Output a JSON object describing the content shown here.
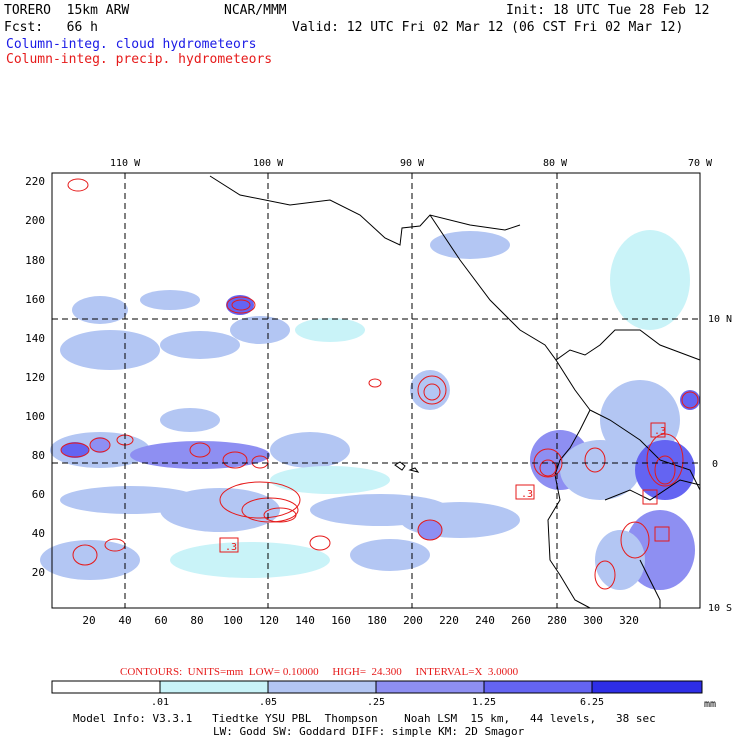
{
  "header": {
    "model": "TORERO  15km ARW",
    "org": "NCAR/MMM",
    "init": "Init: 18 UTC Tue 28 Feb 12",
    "fcst": "Fcst:   66 h",
    "valid": "Valid: 12 UTC Fri 02 Mar 12 (06 CST Fri 02 Mar 12)",
    "field_cloud": "Column-integ. cloud hydrometeors",
    "field_precip": "Column-integ. precip. hydrometeors"
  },
  "map": {
    "lon_labels": [
      "110 W",
      "100 W",
      "90 W",
      "80 W",
      "70 W"
    ],
    "lat_labels": [
      "10 N",
      "0",
      "10 S"
    ],
    "y_ticks": [
      "220",
      "200",
      "180",
      "160",
      "140",
      "120",
      "100",
      "80",
      "60",
      "40",
      "20"
    ],
    "x_ticks": [
      "20",
      "40",
      "60",
      "80",
      "100",
      "120",
      "140",
      "160",
      "180",
      "200",
      "220",
      "240",
      "260",
      "280",
      "300",
      "320"
    ],
    "markers": [
      ".3",
      ".3",
      ".3"
    ],
    "colors": {
      "light": "#c9f3f8",
      "pale_blue": "#b3c6f3",
      "mid_blue": "#8e8ff2",
      "deep_blue": "#6464f2",
      "dark_blue": "#3c3ce6",
      "contour": "#e61a1a"
    }
  },
  "contours_line": "CONTOURS:  UNITS=mm  LOW= 0.10000     HIGH=  24.300     INTERVAL=X  3.0000",
  "colorbar": {
    "labels": [
      ".01",
      ".05",
      ".25",
      "1.25",
      "6.25"
    ],
    "unit": "mm",
    "colors": [
      "#ffffff",
      "#c9f3f8",
      "#b3c6f3",
      "#8e8ff2",
      "#6464f2",
      "#2e2ee6"
    ]
  },
  "footer": {
    "line1": "Model Info: V3.3.1   Tiedtke YSU PBL  Thompson    Noah LSM  15 km,   44 levels,   38 sec",
    "line2": "LW: Godd SW: Goddard DIFF: simple KM: 2D Smagor"
  }
}
